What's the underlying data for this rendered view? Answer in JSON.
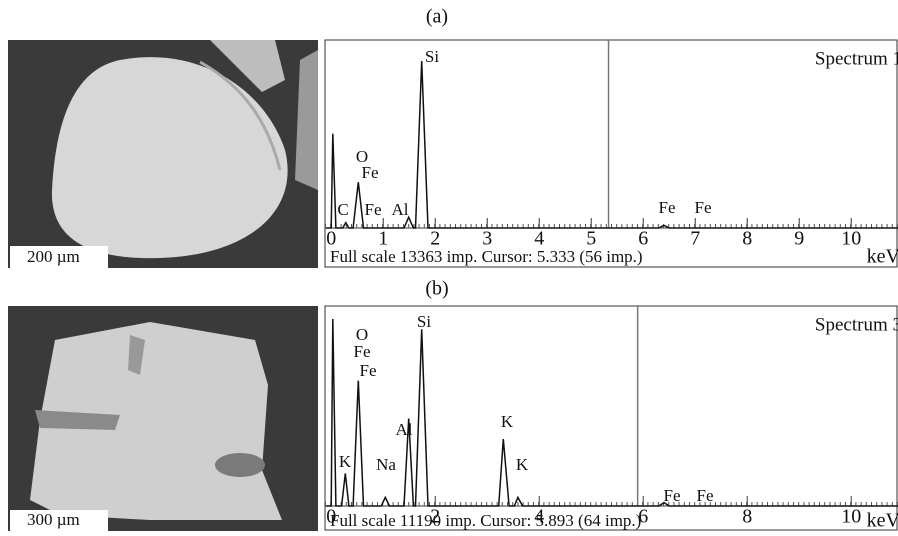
{
  "figure": {
    "panel_labels": [
      "(a)",
      "(b)"
    ],
    "scale_bars": [
      "200 µm",
      "300 µm"
    ]
  },
  "chart_data": [
    {
      "type": "line",
      "title": "Spectrum 1",
      "xlabel": "keV",
      "note": "Full scale 13363 imp. Cursor: 5.333 (56 imp.)",
      "cursor": 5.333,
      "xlim": [
        -0.12,
        10.9
      ],
      "ylim": [
        0,
        13363
      ],
      "xticks": [
        0,
        1,
        2,
        3,
        4,
        5,
        6,
        7,
        8,
        9,
        10
      ],
      "annotations": [
        "Si",
        "O",
        "Fe",
        "C",
        "Fe",
        "Al",
        "Fe",
        "Fe"
      ],
      "x": [
        -0.1,
        0.0,
        0.03,
        0.09,
        0.22,
        0.28,
        0.34,
        0.42,
        0.52,
        0.62,
        1.4,
        1.49,
        1.58,
        1.62,
        1.74,
        1.86,
        6.3,
        6.4,
        6.5,
        10.9
      ],
      "series": [
        {
          "name": "Spectrum 1",
          "color": "#111111",
          "values": [
            0,
            0,
            7000,
            0,
            0,
            400,
            0,
            0,
            3400,
            0,
            0,
            800,
            0,
            0,
            12400,
            0,
            0,
            200,
            0,
            0
          ]
        }
      ]
    },
    {
      "type": "line",
      "title": "Spectrum 3",
      "xlabel": "keV",
      "note": "Full scale 11190 imp. Cursor: 5.893 (64 imp.)",
      "cursor": 5.893,
      "xlim": [
        -0.12,
        10.9
      ],
      "ylim": [
        0,
        11190
      ],
      "xticks": [
        0,
        2,
        4,
        6,
        8,
        10
      ],
      "annotations": [
        "O",
        "Fe",
        "Fe",
        "Si",
        "Al",
        "Na",
        "K",
        "K",
        "K",
        "Fe",
        "Fe"
      ],
      "x": [
        -0.1,
        0.0,
        0.03,
        0.09,
        0.2,
        0.27,
        0.34,
        0.42,
        0.52,
        0.62,
        0.96,
        1.04,
        1.12,
        1.4,
        1.49,
        1.58,
        1.62,
        1.74,
        1.86,
        3.22,
        3.31,
        3.42,
        3.52,
        3.59,
        3.68,
        6.3,
        6.4,
        6.5,
        10.9
      ],
      "series": [
        {
          "name": "Spectrum 3",
          "color": "#111111",
          "values": [
            0,
            0,
            10900,
            0,
            0,
            1900,
            0,
            0,
            7300,
            0,
            0,
            500,
            0,
            0,
            5100,
            0,
            0,
            10300,
            0,
            0,
            3900,
            0,
            0,
            500,
            0,
            0,
            200,
            0,
            0
          ]
        }
      ]
    }
  ]
}
